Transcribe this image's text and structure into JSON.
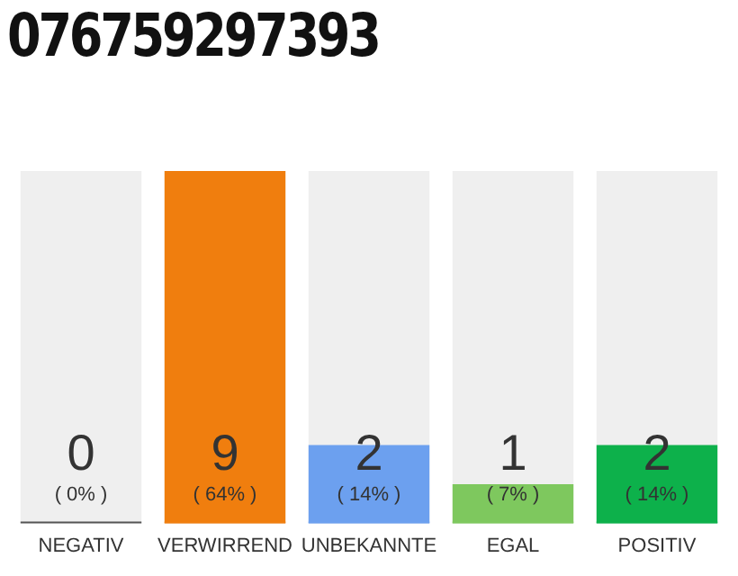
{
  "chart_data": {
    "type": "bar",
    "title": "076759297393",
    "categories": [
      "NEGATIV",
      "VERWIRREND",
      "UNBEKANNTE",
      "EGAL",
      "POSITIV"
    ],
    "values": [
      0,
      9,
      2,
      1,
      2
    ],
    "colors": [
      "#555555",
      "#f07e0e",
      "#6ca0ef",
      "#7ec85e",
      "#0db14b"
    ],
    "grid": false,
    "legend": false,
    "value_labels": [
      "0\n( 0% )",
      "9\n( 64% )",
      "2\n( 14% )",
      "1\n( 7% )",
      "2\n( 14% )"
    ]
  }
}
